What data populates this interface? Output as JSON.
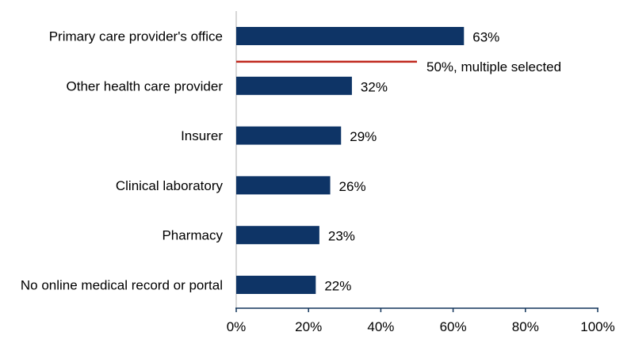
{
  "chart_data": {
    "type": "bar",
    "orientation": "horizontal",
    "title": "",
    "xlabel": "",
    "ylabel": "",
    "categories": [
      "Primary care provider's office",
      "Other health care provider",
      "Insurer",
      "Clinical laboratory",
      "Pharmacy",
      "No online medical record or portal"
    ],
    "values": [
      63,
      32,
      29,
      26,
      23,
      22
    ],
    "value_labels": [
      "63%",
      "32%",
      "29%",
      "26%",
      "23%",
      "22%"
    ],
    "xlim": [
      0,
      100
    ],
    "xticks": [
      0,
      20,
      40,
      60,
      80,
      100
    ],
    "xtick_labels": [
      "0%",
      "20%",
      "40%",
      "60%",
      "80%",
      "100%"
    ],
    "grid": false,
    "annotation": {
      "value": 50,
      "label": "50%, multiple selected",
      "between_categories": [
        0,
        1
      ]
    },
    "colors": {
      "bar": "#0e3466",
      "annotation_line": "#c0281d",
      "axis": "#12355b",
      "category_axis": "#bfbfbf",
      "text": "#000000"
    }
  }
}
